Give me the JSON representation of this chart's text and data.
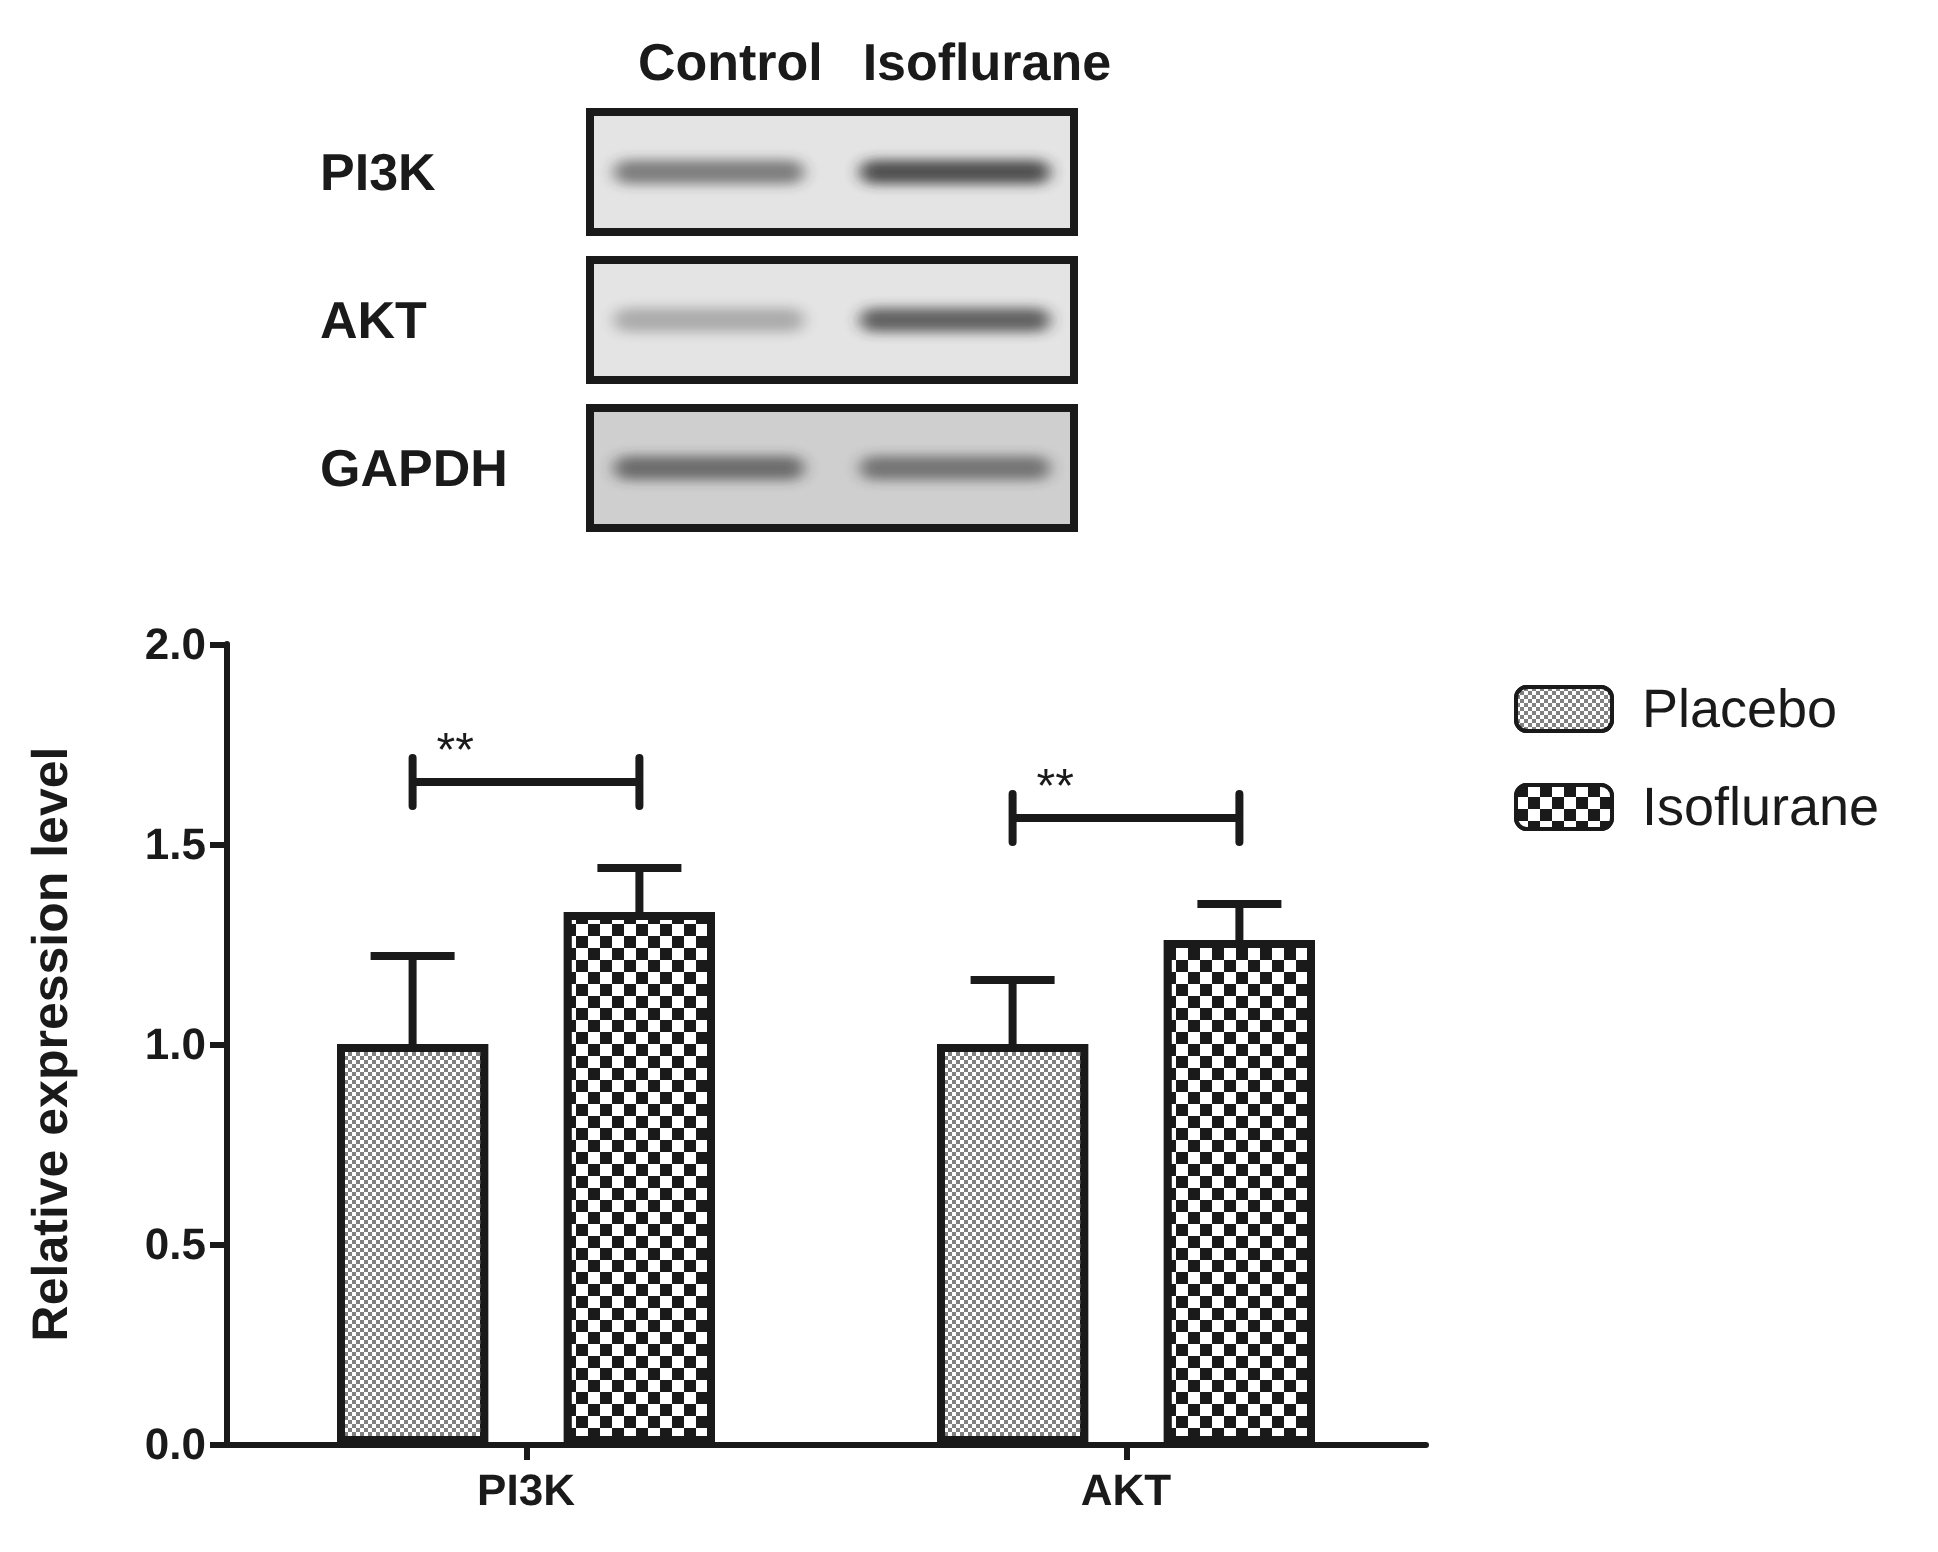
{
  "chart_data": {
    "type": "bar",
    "ylabel": "Relative expression level",
    "categories": [
      "PI3K",
      "AKT"
    ],
    "series": [
      {
        "name": "Placebo",
        "color": "#808080",
        "values": [
          1.0,
          1.0
        ],
        "errors": [
          [
            1.0,
            1.22
          ],
          [
            1.0,
            1.16
          ]
        ]
      },
      {
        "name": "Isoflurane",
        "color": "#1a1a1a",
        "values": [
          1.33,
          1.26
        ],
        "errors": [
          [
            1.33,
            1.44
          ],
          [
            1.26,
            1.35
          ]
        ]
      }
    ],
    "ylim": [
      0,
      2
    ],
    "yticks": [
      {
        "value": 0,
        "label": "0.0"
      },
      0.5,
      {
        "value": 1,
        "label": "1.0"
      },
      1.5,
      {
        "value": 2,
        "label": "2.0"
      }
    ],
    "grid": false,
    "legend": "top right",
    "annotations": [
      "Control",
      "Isoflurane",
      "PI3K",
      "AKT",
      "GAPDH",
      "**",
      "**"
    ]
  }
}
